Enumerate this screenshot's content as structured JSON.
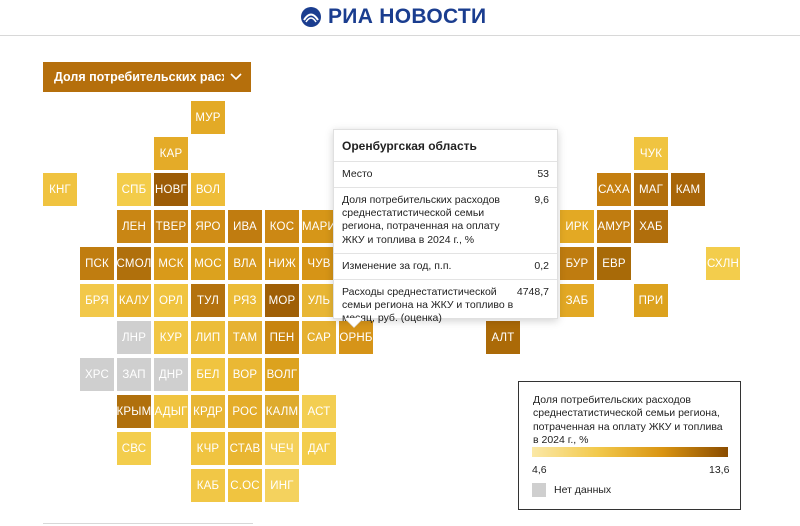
{
  "header": {
    "logo_text": "РИА НОВОСТИ",
    "logo_color": "#1a3d8f"
  },
  "dropdown": {
    "label": "Доля потребительских расхо...",
    "icon": "chevron-down-icon"
  },
  "colors": {
    "no_data": "#cfcfcf",
    "scale": [
      "#fbe8a6",
      "#f2c94c",
      "#d99412",
      "#8a4c00"
    ]
  },
  "regions": [
    {
      "code": "МУР",
      "color": "#e3aa26",
      "text": "#ffffff"
    },
    {
      "code": "КАР",
      "color": "#e4ab28",
      "text": "#ffffff"
    },
    {
      "code": "ЧУК",
      "color": "#f0c440",
      "text": "#ffffff"
    },
    {
      "code": "КНГ",
      "color": "#f0c340",
      "text": "#ffffff"
    },
    {
      "code": "СПБ",
      "color": "#f3cc4a",
      "text": "#ffffff"
    },
    {
      "code": "НОВГ",
      "color": "#9c5c06",
      "text": "#ffffff"
    },
    {
      "code": "ВОЛ",
      "color": "#eebd38",
      "text": "#ffffff"
    },
    {
      "code": "САХА",
      "color": "#c57f10",
      "text": "#ffffff"
    },
    {
      "code": "МАГ",
      "color": "#b26f0c",
      "text": "#ffffff"
    },
    {
      "code": "КАМ",
      "color": "#a86508",
      "text": "#ffffff"
    },
    {
      "code": "ЛЕН",
      "color": "#c98614",
      "text": "#ffffff"
    },
    {
      "code": "ТВЕР",
      "color": "#c48012",
      "text": "#ffffff"
    },
    {
      "code": "ЯРО",
      "color": "#d08d16",
      "text": "#ffffff"
    },
    {
      "code": "ИВА",
      "color": "#c07c10",
      "text": "#ffffff"
    },
    {
      "code": "КОС",
      "color": "#cc8814",
      "text": "#ffffff"
    },
    {
      "code": "МАРИ",
      "color": "#d69618",
      "text": "#ffffff"
    },
    {
      "code": "ИРК",
      "color": "#e3a924",
      "text": "#ffffff"
    },
    {
      "code": "АМУР",
      "color": "#c07c10",
      "text": "#ffffff"
    },
    {
      "code": "ХАБ",
      "color": "#b06e0c",
      "text": "#ffffff"
    },
    {
      "code": "ПСК",
      "color": "#c07d10",
      "text": "#ffffff"
    },
    {
      "code": "СМОЛ",
      "color": "#b0700c",
      "text": "#ffffff"
    },
    {
      "code": "МСК",
      "color": "#d99a1a",
      "text": "#ffffff"
    },
    {
      "code": "МОС",
      "color": "#dca21e",
      "text": "#ffffff"
    },
    {
      "code": "ВЛА",
      "color": "#d6981a",
      "text": "#ffffff"
    },
    {
      "code": "НИЖ",
      "color": "#d8991a",
      "text": "#ffffff"
    },
    {
      "code": "ЧУВ",
      "color": "#d69416",
      "text": "#ffffff"
    },
    {
      "code": "БУР",
      "color": "#bf7c10",
      "text": "#ffffff"
    },
    {
      "code": "ЕВР",
      "color": "#a86a08",
      "text": "#ffffff"
    },
    {
      "code": "СХЛН",
      "color": "#f3cd4c",
      "text": "#ffffff"
    },
    {
      "code": "БРЯ",
      "color": "#f2c84a",
      "text": "#ffffff"
    },
    {
      "code": "КАЛУ",
      "color": "#e8b430",
      "text": "#ffffff"
    },
    {
      "code": "ОРЛ",
      "color": "#f0c440",
      "text": "#ffffff"
    },
    {
      "code": "ТУЛ",
      "color": "#b4720e",
      "text": "#ffffff"
    },
    {
      "code": "РЯЗ",
      "color": "#ebbb36",
      "text": "#ffffff"
    },
    {
      "code": "МОР",
      "color": "#9f5f06",
      "text": "#ffffff"
    },
    {
      "code": "УЛЬ",
      "color": "#e8b634",
      "text": "#ffffff"
    },
    {
      "code": "ЗАБ",
      "color": "#e2a824",
      "text": "#ffffff"
    },
    {
      "code": "ПРИ",
      "color": "#dca21e",
      "text": "#ffffff"
    },
    {
      "code": "ЛНР",
      "color": "#cfcfcf",
      "text": "#ffffff"
    },
    {
      "code": "КУР",
      "color": "#f1c644",
      "text": "#ffffff"
    },
    {
      "code": "ЛИП",
      "color": "#ecbd3a",
      "text": "#ffffff"
    },
    {
      "code": "ТАМ",
      "color": "#e6b232",
      "text": "#ffffff"
    },
    {
      "code": "ПЕН",
      "color": "#c7840f",
      "text": "#ffffff"
    },
    {
      "code": "САР",
      "color": "#e5b030",
      "text": "#ffffff"
    },
    {
      "code": "ОРНБ",
      "color": "#d69418",
      "text": "#ffffff"
    },
    {
      "code": "АЛТ",
      "color": "#ab6a08",
      "text": "#ffffff"
    },
    {
      "code": "ХРС",
      "color": "#cfcfcf",
      "text": "#ffffff"
    },
    {
      "code": "ЗАП",
      "color": "#cfcfcf",
      "text": "#ffffff"
    },
    {
      "code": "ДНР",
      "color": "#cfcfcf",
      "text": "#ffffff"
    },
    {
      "code": "БЕЛ",
      "color": "#f0c440",
      "text": "#ffffff"
    },
    {
      "code": "ВОР",
      "color": "#eab834",
      "text": "#ffffff"
    },
    {
      "code": "ВОЛГ",
      "color": "#dca21e",
      "text": "#ffffff"
    },
    {
      "code": "КРЫМ",
      "color": "#b0700c",
      "text": "#ffffff"
    },
    {
      "code": "АДЫГ",
      "color": "#f0c440",
      "text": "#ffffff"
    },
    {
      "code": "КРДР",
      "color": "#e8b634",
      "text": "#ffffff"
    },
    {
      "code": "РОС",
      "color": "#e4ad2a",
      "text": "#ffffff"
    },
    {
      "code": "КАЛМ",
      "color": "#deab2e",
      "text": "#ffffff"
    },
    {
      "code": "АСТ",
      "color": "#f3ce52",
      "text": "#ffffff"
    },
    {
      "code": "СВС",
      "color": "#f3cd4c",
      "text": "#ffffff"
    },
    {
      "code": "КЧР",
      "color": "#f0c440",
      "text": "#ffffff"
    },
    {
      "code": "СТАВ",
      "color": "#e9b632",
      "text": "#ffffff"
    },
    {
      "code": "ЧЕЧ",
      "color": "#f4d05a",
      "text": "#ffffff"
    },
    {
      "code": "ДАГ",
      "color": "#f3cd4c",
      "text": "#ffffff"
    },
    {
      "code": "КАБ",
      "color": "#f1c746",
      "text": "#ffffff"
    },
    {
      "code": "С.ОС",
      "color": "#f0c440",
      "text": "#ffffff"
    },
    {
      "code": "ИНГ",
      "color": "#f4d25e",
      "text": "#ffffff"
    }
  ],
  "tooltip": {
    "title": "Оренбургская область",
    "rows": [
      {
        "label": "Место",
        "value": "53"
      },
      {
        "label": "Доля потребительских расходов среднестатистической семьи региона, потраченная на оплату ЖКУ и топлива в 2024 г., %",
        "value": "9,6"
      },
      {
        "label": "Изменение за год, п.п.",
        "value": "0,2"
      },
      {
        "label": "Расходы среднестатистической семьи региона на ЖКУ и топливо в месяц, руб. (оценка)",
        "value": "4748,7"
      }
    ]
  },
  "legend": {
    "title": "Доля потребительских расходов среднестатистической семьи региона, потраченная на оплату ЖКУ и топлива в 2024 г., %",
    "min": "4,6",
    "max": "13,6",
    "no_data": "Нет данных"
  }
}
